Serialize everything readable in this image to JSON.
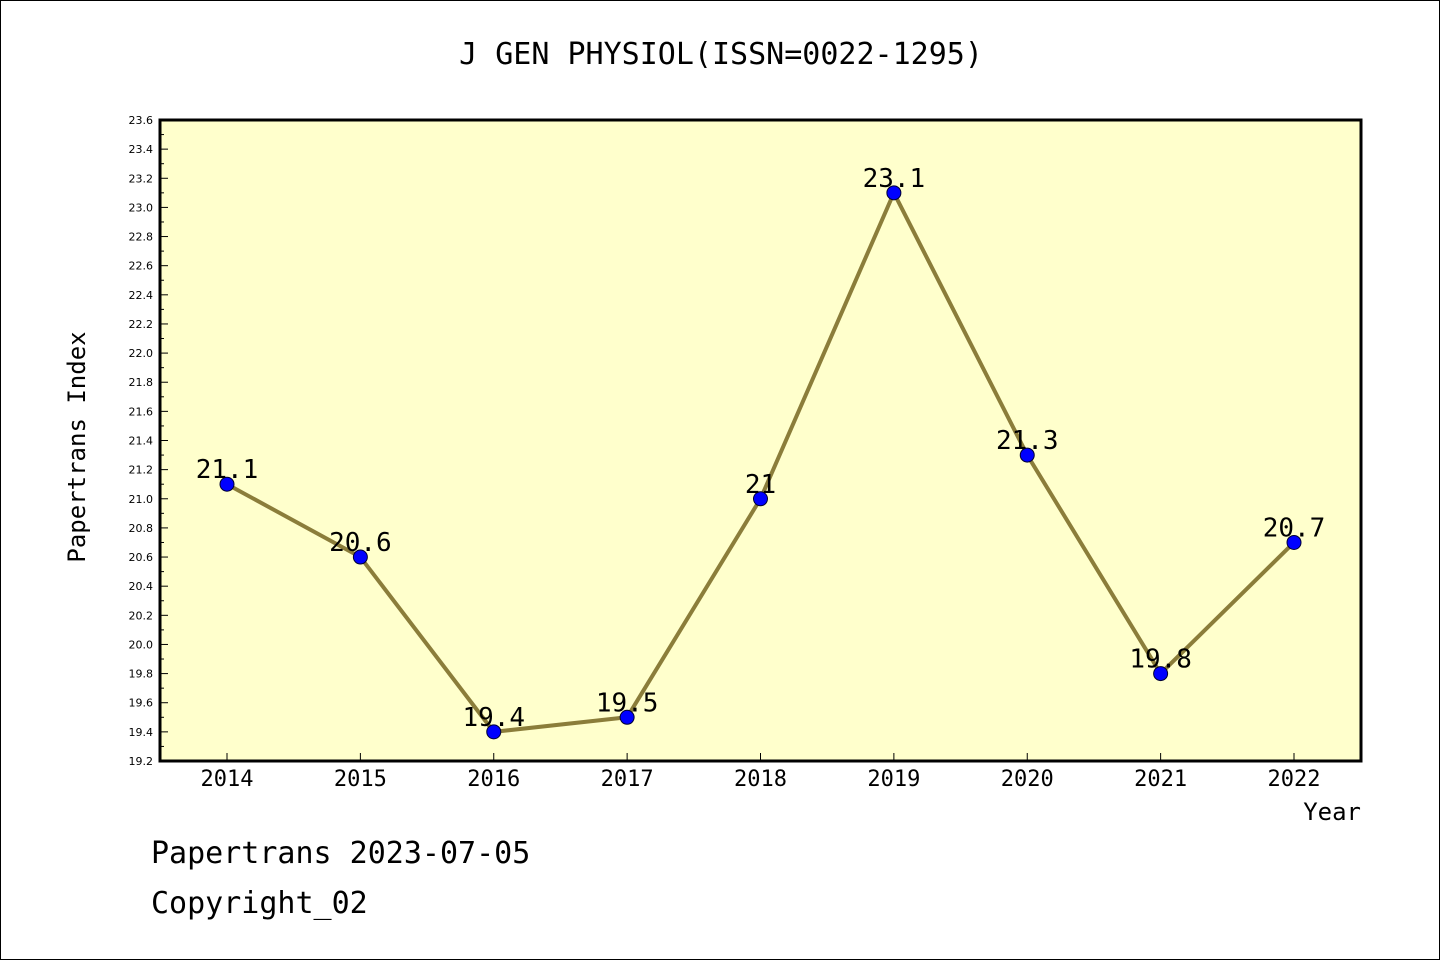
{
  "chart_data": {
    "type": "line",
    "title": "J GEN PHYSIOL(ISSN=0022-1295)",
    "xlabel": "Year",
    "ylabel": "Papertrans Index",
    "categories": [
      "2014",
      "2015",
      "2016",
      "2017",
      "2018",
      "2019",
      "2020",
      "2021",
      "2022"
    ],
    "values": [
      21.1,
      20.6,
      19.4,
      19.5,
      21.0,
      23.1,
      21.3,
      19.8,
      20.7
    ],
    "data_labels": [
      "21.1",
      "20.6",
      "19.4",
      "19.5",
      "21",
      "23.1",
      "21.3",
      "19.8",
      "20.7"
    ],
    "ylim": [
      19.2,
      23.6
    ],
    "yticks": [
      "19.2",
      "19.4",
      "19.6",
      "19.8",
      "20.0",
      "20.2",
      "20.4",
      "20.6",
      "20.8",
      "21.0",
      "21.2",
      "21.4",
      "21.6",
      "21.8",
      "22.0",
      "22.2",
      "22.4",
      "22.6",
      "22.8",
      "23.0",
      "23.2",
      "23.4",
      "23.6"
    ],
    "grid": false,
    "colors": {
      "plot_background": "#ffffcc",
      "line": "#8b7d3a",
      "marker": "#0000ff"
    }
  },
  "footer": {
    "line1": "Papertrans 2023-07-05",
    "line2": "Copyright_02"
  }
}
